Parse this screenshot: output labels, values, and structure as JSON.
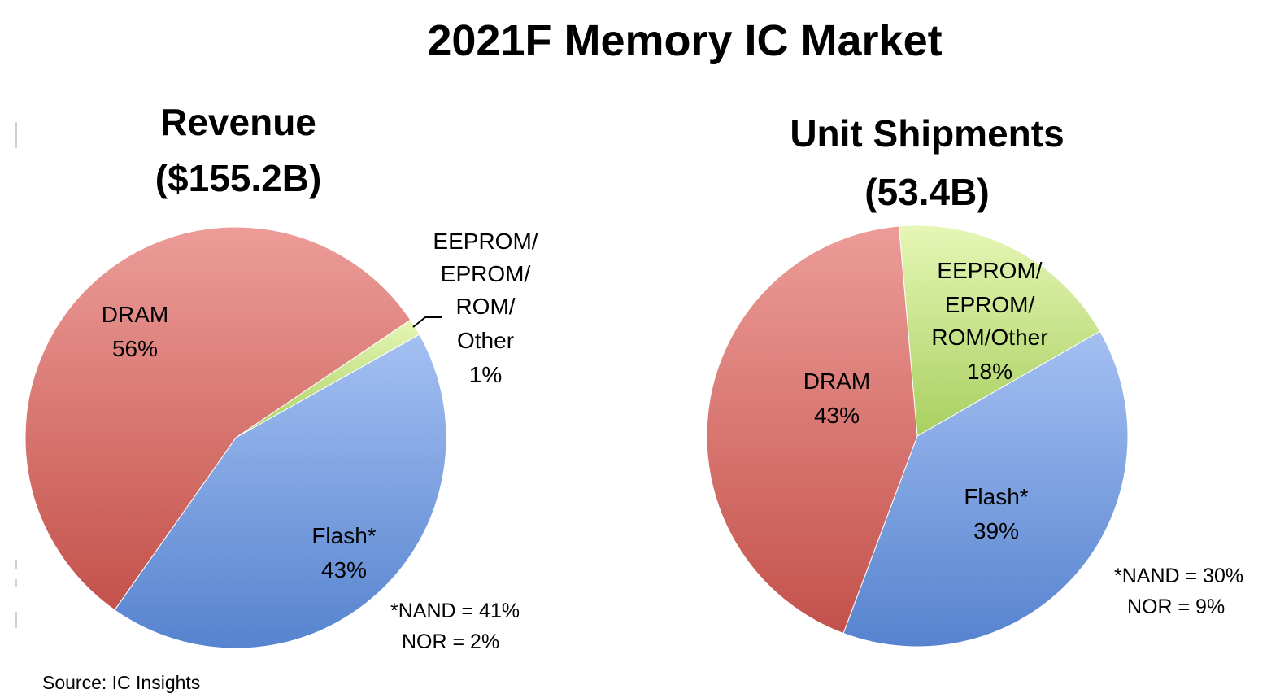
{
  "title": "2021F Memory IC Market",
  "source": "Source:  IC Insights",
  "colors": {
    "DRAM": [
      "#ec9c98",
      "#c4514b"
    ],
    "Flash": [
      "#a4c0f2",
      "#5683cf"
    ],
    "Other": [
      "#e6f6b6",
      "#a8d060"
    ]
  },
  "chart_data": [
    {
      "type": "pie",
      "title": [
        "Revenue",
        "($155.2B)"
      ],
      "slices": [
        {
          "key": "Other",
          "label": [
            "EEPROM/",
            "EPROM/",
            "ROM/",
            "Other"
          ],
          "value_label": "1%",
          "value": 1.3
        },
        {
          "key": "Flash",
          "label": [
            "Flash*"
          ],
          "value_label": "43%",
          "value": 42.9
        },
        {
          "key": "DRAM",
          "label": [
            "DRAM"
          ],
          "value_label": "56%",
          "value": 55.8
        }
      ],
      "notes": [
        "*NAND = 41%",
        "NOR = 2%"
      ]
    },
    {
      "type": "pie",
      "title": [
        "Unit Shipments",
        "(53.4B)"
      ],
      "slices": [
        {
          "key": "Other",
          "label": [
            "EEPROM/",
            "EPROM/",
            "ROM/Other"
          ],
          "value_label": "18%",
          "value": 18.1
        },
        {
          "key": "Flash",
          "label": [
            "Flash*"
          ],
          "value_label": "39%",
          "value": 39.0
        },
        {
          "key": "DRAM",
          "label": [
            "DRAM"
          ],
          "value_label": "43%",
          "value": 42.9
        }
      ],
      "notes": [
        "*NAND = 30%",
        "NOR = 9%"
      ]
    }
  ]
}
